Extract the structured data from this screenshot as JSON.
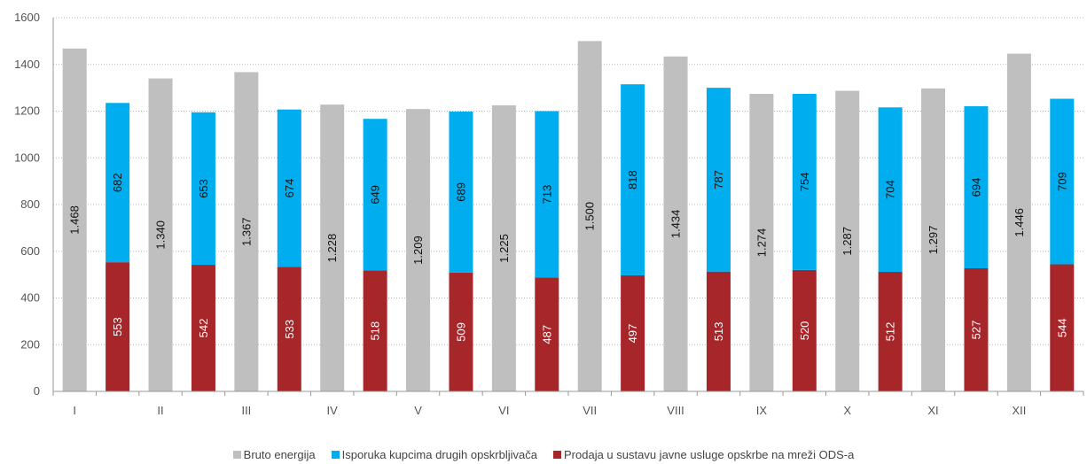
{
  "chart_data": {
    "type": "bar",
    "categories": [
      "I",
      "II",
      "III",
      "IV",
      "V",
      "VI",
      "VII",
      "VIII",
      "IX",
      "X",
      "XI",
      "XII"
    ],
    "series": [
      {
        "name": "Bruto energija",
        "color": "#bfbfbf",
        "values": [
          1468,
          1340,
          1367,
          1228,
          1209,
          1225,
          1500,
          1434,
          1274,
          1287,
          1297,
          1446
        ],
        "labels": [
          "1.468",
          "1.340",
          "1.367",
          "1.228",
          "1.209",
          "1.225",
          "1.500",
          "1.434",
          "1.274",
          "1.287",
          "1.297",
          "1.446"
        ]
      },
      {
        "name": "Isporuka kupcima drugih opskrbljivača",
        "color": "#00aeef",
        "values": [
          682,
          653,
          674,
          649,
          689,
          713,
          818,
          787,
          754,
          704,
          694,
          709
        ],
        "labels": [
          "682",
          "653",
          "674",
          "649",
          "689",
          "713",
          "818",
          "787",
          "754",
          "704",
          "694",
          "709"
        ]
      },
      {
        "name": "Prodaja u sustavu javne usluge opskrbe na mreži ODS-a",
        "color": "#a6262a",
        "values": [
          553,
          542,
          533,
          518,
          509,
          487,
          497,
          513,
          520,
          512,
          527,
          544
        ],
        "labels": [
          "553",
          "542",
          "533",
          "518",
          "509",
          "487",
          "497",
          "513",
          "520",
          "512",
          "527",
          "544"
        ]
      }
    ],
    "stacked_series": [
      2,
      1
    ],
    "yticks": [
      "0",
      "200",
      "400",
      "600",
      "800",
      "1000",
      "1200",
      "1400",
      "1600"
    ],
    "ylim": [
      0,
      1600
    ],
    "grid": true,
    "legend_position": "bottom"
  }
}
